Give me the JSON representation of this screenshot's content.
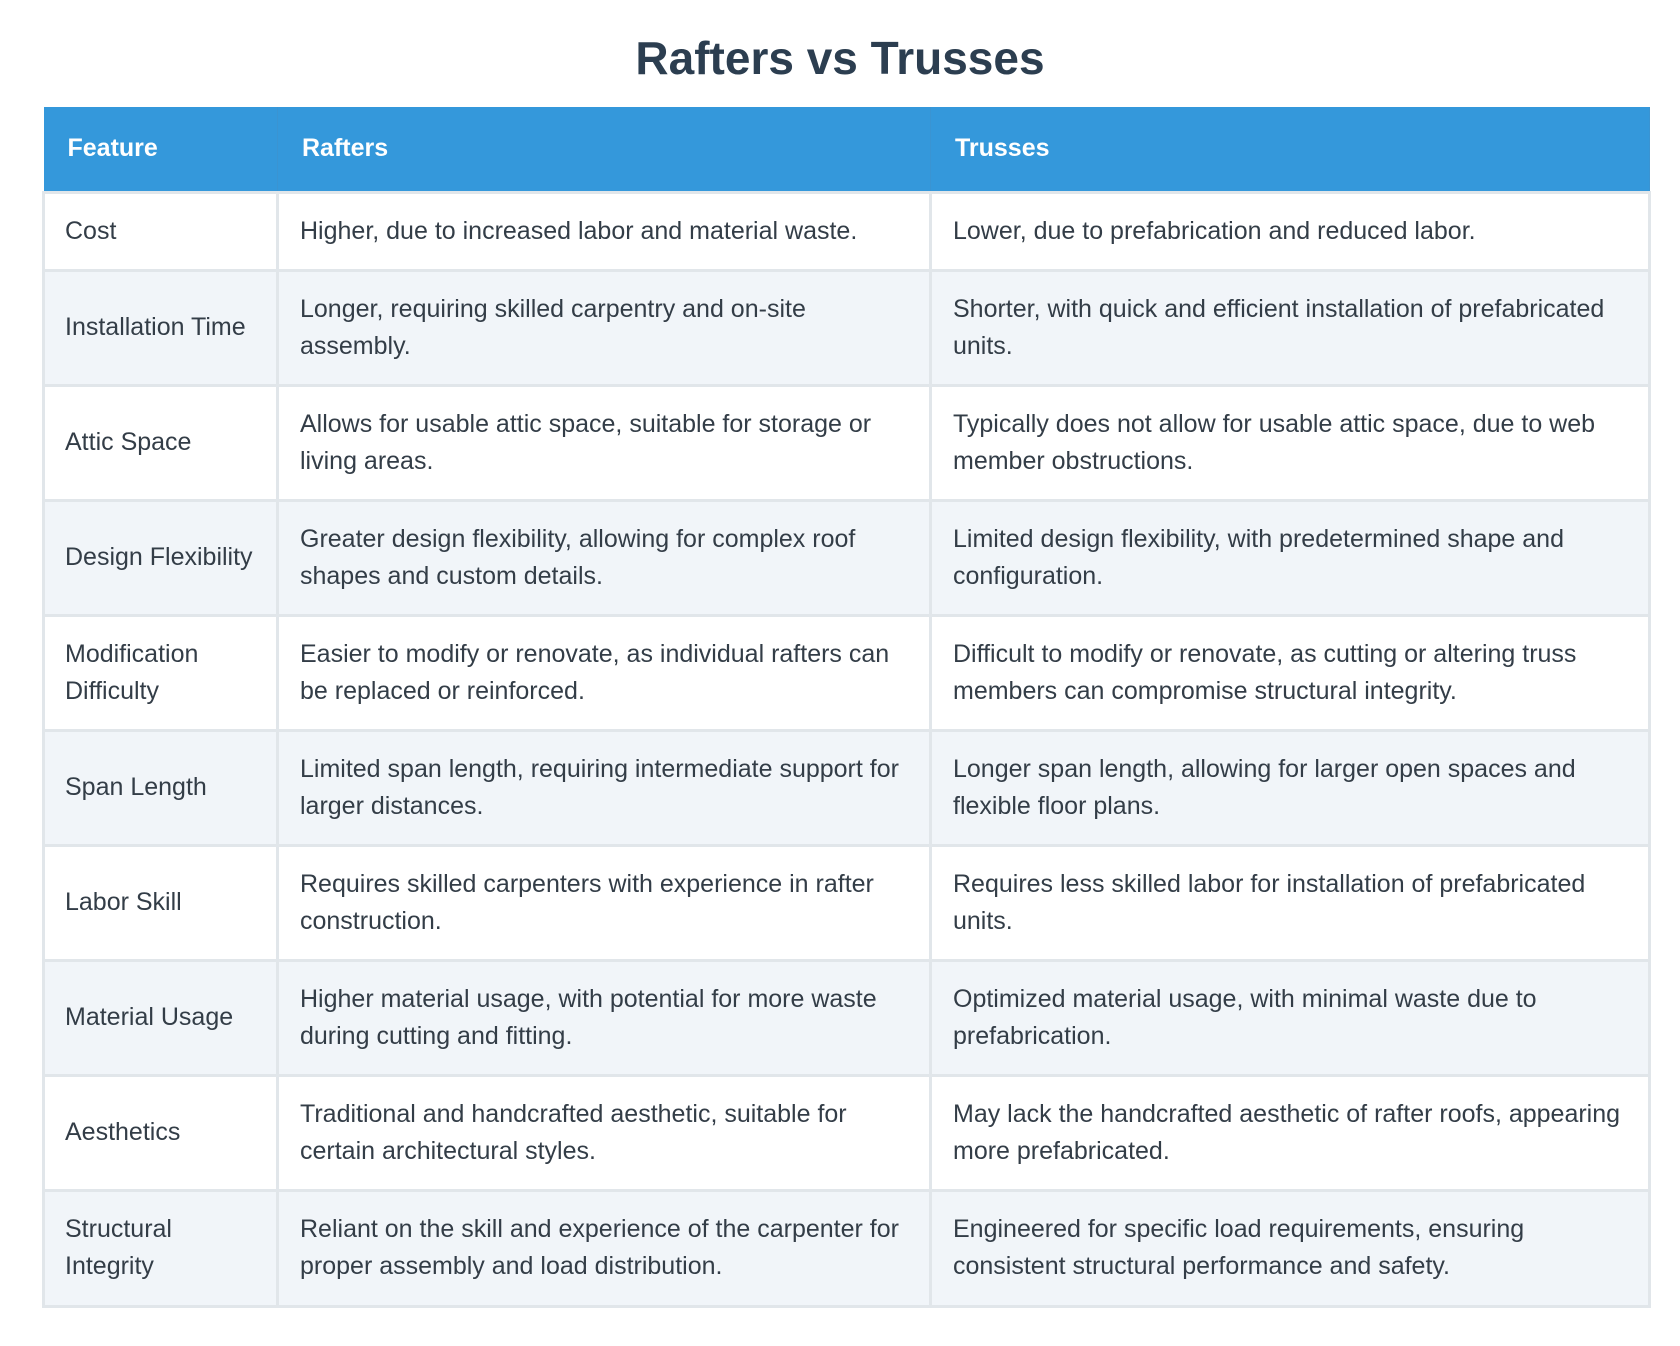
{
  "title": "Rafters vs Trusses",
  "table": {
    "headers": {
      "feature": "Feature",
      "rafters": "Rafters",
      "trusses": "Trusses"
    },
    "rows": [
      {
        "feature": "Cost",
        "rafters": "Higher, due to increased labor and material waste.",
        "trusses": "Lower, due to prefabrication and reduced labor."
      },
      {
        "feature": "Installation Time",
        "rafters": "Longer, requiring skilled carpentry and on-site assembly.",
        "trusses": "Shorter, with quick and efficient installation of prefabricated units."
      },
      {
        "feature": "Attic Space",
        "rafters": "Allows for usable attic space, suitable for storage or living areas.",
        "trusses": "Typically does not allow for usable attic space, due to web member obstructions."
      },
      {
        "feature": "Design Flexibility",
        "rafters": "Greater design flexibility, allowing for complex roof shapes and custom details.",
        "trusses": "Limited design flexibility, with predetermined shape and configuration."
      },
      {
        "feature": "Modification Difficulty",
        "rafters": "Easier to modify or renovate, as individual rafters can be replaced or reinforced.",
        "trusses": "Difficult to modify or renovate, as cutting or altering truss members can compromise structural integrity."
      },
      {
        "feature": "Span Length",
        "rafters": "Limited span length, requiring intermediate support for larger distances.",
        "trusses": "Longer span length, allowing for larger open spaces and flexible floor plans."
      },
      {
        "feature": "Labor Skill",
        "rafters": "Requires skilled carpenters with experience in rafter construction.",
        "trusses": "Requires less skilled labor for installation of prefabricated units."
      },
      {
        "feature": "Material Usage",
        "rafters": "Higher material usage, with potential for more waste during cutting and fitting.",
        "trusses": "Optimized material usage, with minimal waste due to prefabrication."
      },
      {
        "feature": "Aesthetics",
        "rafters": "Traditional and handcrafted aesthetic, suitable for certain architectural styles.",
        "trusses": "May lack the handcrafted aesthetic of rafter roofs, appearing more prefabricated."
      },
      {
        "feature": "Structural Integrity",
        "rafters": "Reliant on the skill and experience of the carpenter for proper assembly and load distribution.",
        "trusses": "Engineered for specific load requirements, ensuring consistent structural performance and safety."
      }
    ]
  }
}
